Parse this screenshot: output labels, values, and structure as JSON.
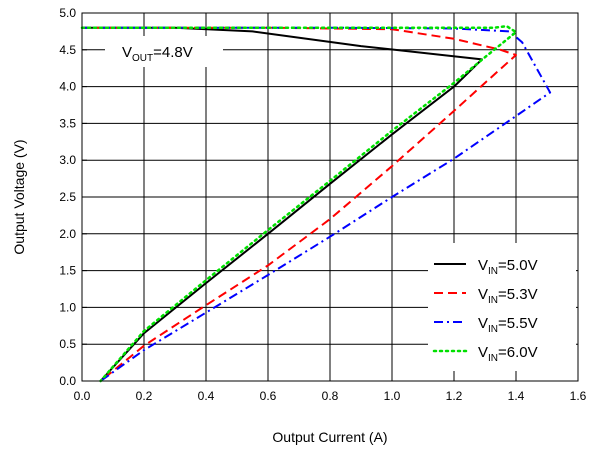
{
  "chart_data": {
    "type": "line",
    "xlabel": "Output Current (A)",
    "ylabel": "Output Voltage (V)",
    "xlim": [
      0.0,
      1.6
    ],
    "ylim": [
      0.0,
      5.0
    ],
    "xticks": [
      "0.0",
      "0.2",
      "0.4",
      "0.6",
      "0.8",
      "1.0",
      "1.2",
      "1.4",
      "1.6"
    ],
    "yticks": [
      "0.0",
      "0.5",
      "1.0",
      "1.5",
      "2.0",
      "2.5",
      "3.0",
      "3.5",
      "4.0",
      "4.5",
      "5.0"
    ],
    "grid": true,
    "legend_position": "bottom-right",
    "annotation": {
      "prefix": "V",
      "sub": "OUT",
      "suffix": "=4.8V"
    },
    "series": [
      {
        "name": "VIN=5.0V",
        "label": {
          "prefix": "V",
          "sub": "IN",
          "suffix": "=5.0V"
        },
        "color": "#000000",
        "style": "solid",
        "x": [
          0.0,
          0.3,
          0.55,
          0.9,
          1.29,
          1.2,
          1.0,
          0.8,
          0.6,
          0.4,
          0.2,
          0.06
        ],
        "y": [
          4.8,
          4.8,
          4.75,
          4.55,
          4.37,
          4.0,
          3.35,
          2.68,
          2.0,
          1.33,
          0.65,
          0.0
        ]
      },
      {
        "name": "VIN=5.3V",
        "label": {
          "prefix": "V",
          "sub": "IN",
          "suffix": "=5.3V"
        },
        "color": "#ff0000",
        "style": "dash",
        "x": [
          0.0,
          0.6,
          1.0,
          1.2,
          1.35,
          1.4,
          1.3,
          1.2,
          1.0,
          0.8,
          0.6,
          0.4,
          0.2,
          0.06
        ],
        "y": [
          4.8,
          4.8,
          4.78,
          4.65,
          4.5,
          4.43,
          4.05,
          3.67,
          2.92,
          2.2,
          1.57,
          1.03,
          0.48,
          0.0
        ]
      },
      {
        "name": "VIN=5.5V",
        "label": {
          "prefix": "V",
          "sub": "IN",
          "suffix": "=5.5V"
        },
        "color": "#0000ff",
        "style": "dashdot",
        "x": [
          0.0,
          0.8,
          1.2,
          1.38,
          1.42,
          1.51,
          1.4,
          1.2,
          1.0,
          0.8,
          0.6,
          0.4,
          0.2,
          0.06
        ],
        "y": [
          4.8,
          4.8,
          4.79,
          4.75,
          4.6,
          3.92,
          3.6,
          3.02,
          2.5,
          1.96,
          1.44,
          0.93,
          0.42,
          0.0
        ]
      },
      {
        "name": "VIN=6.0V",
        "label": {
          "prefix": "V",
          "sub": "IN",
          "suffix": "=6.0V"
        },
        "color": "#00e000",
        "style": "dot",
        "x": [
          0.0,
          0.8,
          1.2,
          1.33,
          1.37,
          1.4,
          1.3,
          1.2,
          1.0,
          0.8,
          0.6,
          0.4,
          0.2,
          0.06
        ],
        "y": [
          4.8,
          4.8,
          4.8,
          4.8,
          4.82,
          4.74,
          4.4,
          4.05,
          3.4,
          2.72,
          2.05,
          1.37,
          0.68,
          0.0
        ]
      }
    ]
  }
}
